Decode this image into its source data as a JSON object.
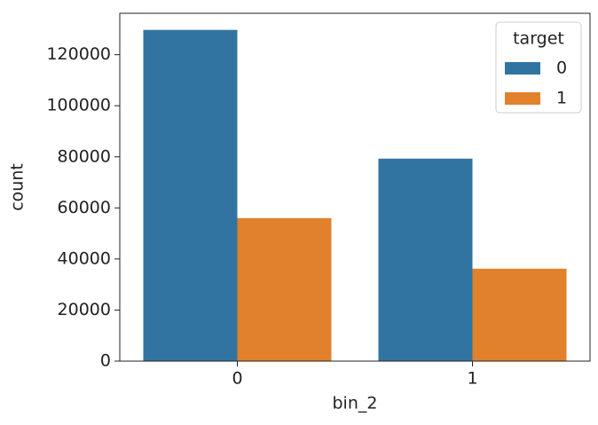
{
  "chart_data": {
    "type": "bar",
    "x_label": "bin_2",
    "y_label": "count",
    "categories": [
      "0",
      "1"
    ],
    "legend_title": "target",
    "legend_position": "upper right",
    "series": [
      {
        "name": "0",
        "color": "#3274a1",
        "values": [
          129700,
          79300
        ]
      },
      {
        "name": "1",
        "color": "#e1812c",
        "values": [
          56000,
          36200
        ]
      }
    ],
    "ylim": [
      0,
      136200
    ],
    "yticks": [
      0,
      20000,
      40000,
      60000,
      80000,
      100000,
      120000
    ]
  }
}
